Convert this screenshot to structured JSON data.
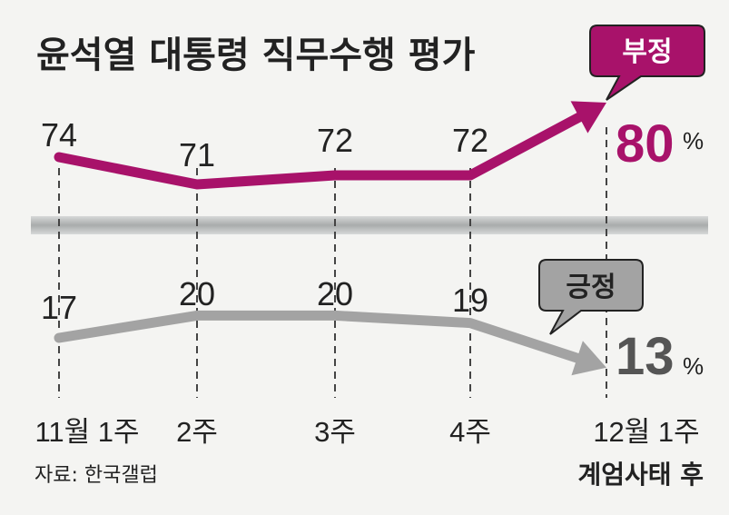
{
  "chart_data": {
    "type": "line",
    "title": "윤석열 대통령 직무수행 평가",
    "categories": [
      "11월 1주",
      "2주",
      "3주",
      "4주",
      "12월 1주"
    ],
    "series": [
      {
        "name": "부정",
        "values": [
          74,
          71,
          72,
          72,
          80
        ],
        "color": "#a8126a"
      },
      {
        "name": "긍정",
        "values": [
          17,
          20,
          20,
          19,
          13
        ],
        "color": "#a3a3a3"
      }
    ],
    "final_labels": {
      "negative": "80",
      "positive": "13",
      "unit": "%"
    },
    "last_category_note": "계엄사태 후",
    "source": "자료: 한국갤럽"
  },
  "colors": {
    "negative": "#a8126a",
    "positive": "#a3a3a3",
    "divider": "#b9bcbc",
    "background": "#f4f4f2"
  }
}
